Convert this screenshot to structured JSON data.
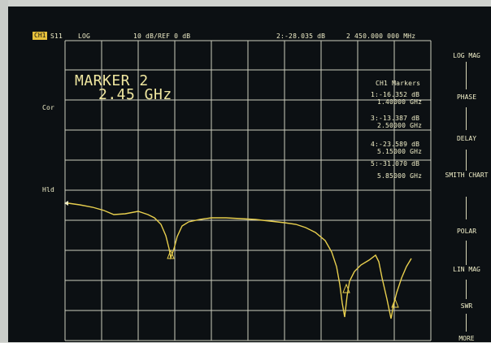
{
  "header": {
    "badge": "CH1",
    "channel": "S11",
    "format": "LOG",
    "scale": "10 dB/REF 0 dB",
    "marker_readout": "2:-28.035 dB",
    "frequency": "2 450.000 000 MHz"
  },
  "left_labels": {
    "cor": "Cor",
    "hld": "Hld"
  },
  "marker_box": {
    "title": "MARKER 2",
    "value": "2.45 GHz"
  },
  "markers_panel": {
    "title": "CH1 Markers",
    "entries": [
      {
        "line1": "1:-16.352 dB",
        "line2": "1.40000 GHz"
      },
      {
        "line1": "3:-13.387 dB",
        "line2": "2.50000 GHz"
      },
      {
        "line1": "4:-23.589 dB",
        "line2": "5.15000 GHz"
      },
      {
        "line1": "5:-31.070 dB",
        "line2": "5.85000 GHz"
      }
    ]
  },
  "softkeys": [
    "LOG MAG",
    "PHASE",
    "DELAY",
    "SMITH CHART",
    "POLAR",
    "LIN MAG",
    "SWR",
    "MORE"
  ],
  "colors": {
    "screen": "#0c1013",
    "grid": "#eef0dc",
    "trace": "#e8cf4e",
    "text": "#f1efc9",
    "badge": "#e7c13b"
  }
}
